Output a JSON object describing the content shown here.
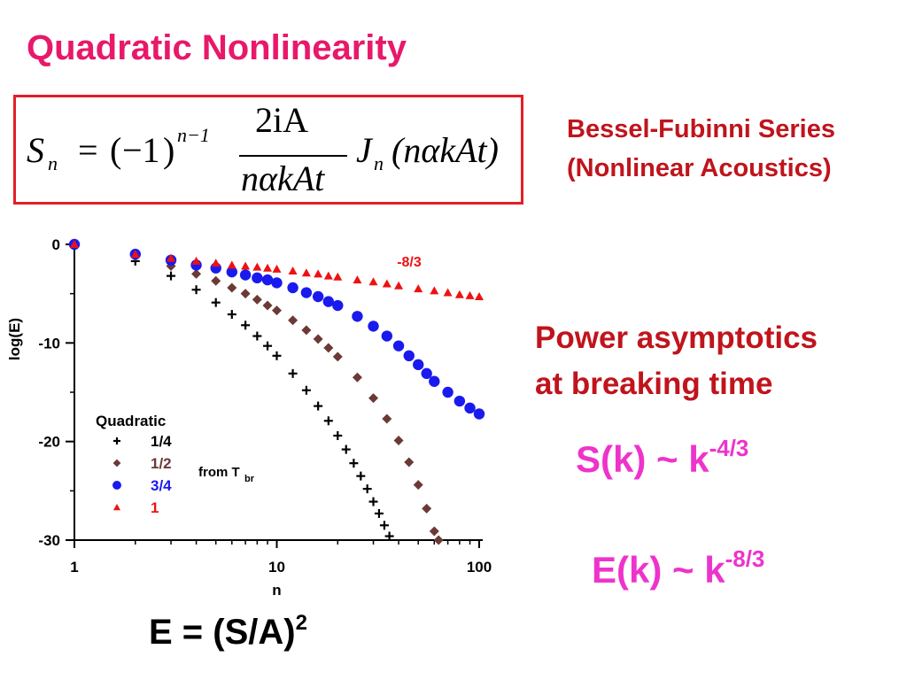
{
  "title": "Quadratic Nonlinearity",
  "bessel": {
    "line1": "Bessel-Fubinni Series",
    "line2": "(Nonlinear Acoustics)"
  },
  "power": {
    "line1": "Power asymptotics",
    "line2": "at breaking time"
  },
  "s_k": {
    "base": "S(k) ~ k",
    "exp": "-4/3"
  },
  "e_k": {
    "base": "E(k) ~ k",
    "exp": "-8/3"
  },
  "energy": {
    "base": "E = (S/A)",
    "exp": "2"
  },
  "equation": {
    "S": "S",
    "n_sub": "n",
    "eq": "=",
    "lp": "(",
    "minus1": "−1",
    "rp": ")",
    "exp": "n−1",
    "num": "2iA",
    "den": "nαkAt",
    "J": "J",
    "j_sub": "n",
    "arg": "(nαkAt)"
  },
  "colors": {
    "title": "#e8186a",
    "dark_red": "#c0141c",
    "magenta": "#ee33cc",
    "box": "#e31f26"
  },
  "chart_data": {
    "type": "scatter",
    "xscale": "log",
    "xlabel": "n",
    "ylabel": "log(E)",
    "xlim": [
      1,
      100
    ],
    "ylim": [
      -30,
      0
    ],
    "xticks": [
      "1",
      "10",
      "100"
    ],
    "yticks": [
      "0",
      "-10",
      "-20",
      "-30"
    ],
    "legend": {
      "title": "Quadratic",
      "position": "bottom-left",
      "entries": [
        "1/4",
        "1/2",
        "3/4",
        "1"
      ],
      "note": "from T",
      "note_sub": "br"
    },
    "annotation": "-8/3",
    "series": [
      {
        "name": "1/4",
        "marker": "plus",
        "color": "#000000",
        "points": [
          [
            1,
            0
          ],
          [
            2,
            -1.7
          ],
          [
            3,
            -3.2
          ],
          [
            4,
            -4.6
          ],
          [
            5,
            -5.9
          ],
          [
            6,
            -7.1
          ],
          [
            7,
            -8.2
          ],
          [
            8,
            -9.3
          ],
          [
            9,
            -10.3
          ],
          [
            10,
            -11.3
          ],
          [
            12,
            -13.1
          ],
          [
            14,
            -14.8
          ],
          [
            16,
            -16.4
          ],
          [
            18,
            -17.9
          ],
          [
            20,
            -19.4
          ],
          [
            22,
            -20.8
          ],
          [
            24,
            -22.2
          ],
          [
            26,
            -23.5
          ],
          [
            28,
            -24.8
          ],
          [
            30,
            -26.1
          ],
          [
            32,
            -27.3
          ],
          [
            34,
            -28.5
          ],
          [
            36,
            -29.6
          ]
        ]
      },
      {
        "name": "1/2",
        "marker": "diamond",
        "color": "#6b3a36",
        "points": [
          [
            1,
            0
          ],
          [
            2,
            -1.2
          ],
          [
            3,
            -2.2
          ],
          [
            4,
            -3.0
          ],
          [
            5,
            -3.7
          ],
          [
            6,
            -4.4
          ],
          [
            7,
            -5.0
          ],
          [
            8,
            -5.6
          ],
          [
            9,
            -6.2
          ],
          [
            10,
            -6.7
          ],
          [
            12,
            -7.7
          ],
          [
            14,
            -8.7
          ],
          [
            16,
            -9.6
          ],
          [
            18,
            -10.5
          ],
          [
            20,
            -11.4
          ],
          [
            25,
            -13.5
          ],
          [
            30,
            -15.6
          ],
          [
            35,
            -17.7
          ],
          [
            40,
            -19.9
          ],
          [
            45,
            -22.1
          ],
          [
            50,
            -24.4
          ],
          [
            55,
            -26.8
          ],
          [
            60,
            -29.1
          ],
          [
            63,
            -30.0
          ]
        ]
      },
      {
        "name": "3/4",
        "marker": "circle",
        "color": "#1a1aee",
        "points": [
          [
            1,
            0
          ],
          [
            2,
            -1.0
          ],
          [
            3,
            -1.6
          ],
          [
            4,
            -2.1
          ],
          [
            5,
            -2.4
          ],
          [
            6,
            -2.8
          ],
          [
            7,
            -3.1
          ],
          [
            8,
            -3.4
          ],
          [
            9,
            -3.6
          ],
          [
            10,
            -3.9
          ],
          [
            12,
            -4.4
          ],
          [
            14,
            -4.9
          ],
          [
            16,
            -5.3
          ],
          [
            18,
            -5.8
          ],
          [
            20,
            -6.2
          ],
          [
            25,
            -7.3
          ],
          [
            30,
            -8.3
          ],
          [
            35,
            -9.3
          ],
          [
            40,
            -10.3
          ],
          [
            45,
            -11.3
          ],
          [
            50,
            -12.2
          ],
          [
            55,
            -13.1
          ],
          [
            60,
            -13.9
          ],
          [
            70,
            -15.0
          ],
          [
            80,
            -15.9
          ],
          [
            90,
            -16.6
          ],
          [
            100,
            -17.2
          ]
        ]
      },
      {
        "name": "1",
        "marker": "triangle",
        "color": "#ee1111",
        "points": [
          [
            1,
            0
          ],
          [
            2,
            -1.0
          ],
          [
            3,
            -1.4
          ],
          [
            4,
            -1.7
          ],
          [
            5,
            -1.9
          ],
          [
            6,
            -2.1
          ],
          [
            7,
            -2.2
          ],
          [
            8,
            -2.3
          ],
          [
            9,
            -2.4
          ],
          [
            10,
            -2.5
          ],
          [
            12,
            -2.7
          ],
          [
            14,
            -2.9
          ],
          [
            16,
            -3.0
          ],
          [
            18,
            -3.2
          ],
          [
            20,
            -3.3
          ],
          [
            25,
            -3.6
          ],
          [
            30,
            -3.8
          ],
          [
            35,
            -4.0
          ],
          [
            40,
            -4.2
          ],
          [
            50,
            -4.5
          ],
          [
            60,
            -4.7
          ],
          [
            70,
            -4.9
          ],
          [
            80,
            -5.1
          ],
          [
            90,
            -5.2
          ],
          [
            100,
            -5.3
          ]
        ]
      }
    ]
  }
}
